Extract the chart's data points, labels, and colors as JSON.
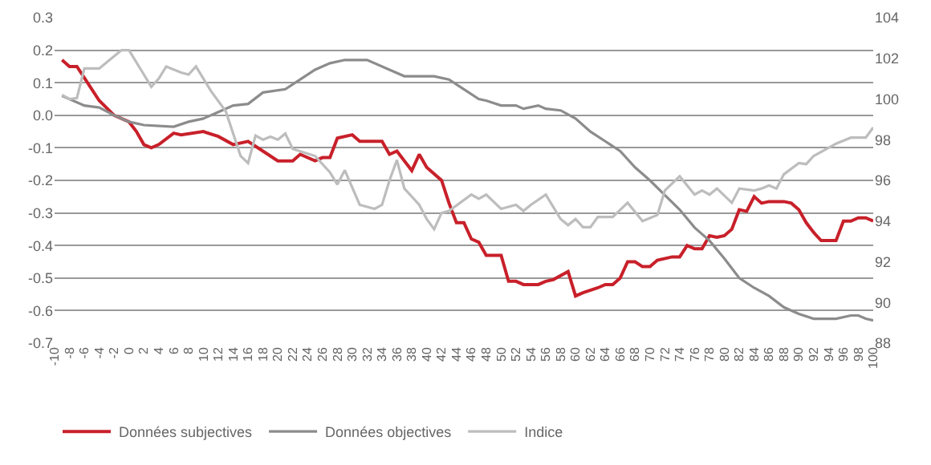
{
  "chart_data": {
    "type": "line",
    "xlim": [
      -10,
      100
    ],
    "xticks": [
      -10,
      -8,
      -6,
      -4,
      -2,
      0,
      2,
      4,
      6,
      8,
      10,
      12,
      14,
      16,
      18,
      20,
      22,
      24,
      26,
      28,
      30,
      32,
      34,
      36,
      38,
      40,
      42,
      44,
      46,
      48,
      50,
      52,
      54,
      56,
      58,
      60,
      62,
      64,
      66,
      68,
      70,
      72,
      74,
      76,
      78,
      80,
      82,
      84,
      86,
      88,
      90,
      92,
      94,
      96,
      98,
      100
    ],
    "ylim": [
      -0.7,
      0.3
    ],
    "yticks": [
      {
        "value": -0.7,
        "label": "-0.7"
      },
      {
        "value": -0.6,
        "label": "-0.6"
      },
      {
        "value": -0.5,
        "label": "-0.5"
      },
      {
        "value": -0.4,
        "label": "-0.4"
      },
      {
        "value": -0.3,
        "label": "-0.3"
      },
      {
        "value": -0.2,
        "label": "-0.2"
      },
      {
        "value": -0.1,
        "label": "-0.1"
      },
      {
        "value": 0,
        "label": "0.0"
      },
      {
        "value": 0.1,
        "label": "0.1"
      },
      {
        "value": 0.2,
        "label": "0.2"
      },
      {
        "value": 0.3,
        "label": "0.3"
      }
    ],
    "y2lim": [
      88,
      104
    ],
    "y2ticks": [
      88,
      90,
      92,
      94,
      96,
      98,
      100,
      102,
      104
    ],
    "grid": "y",
    "legend": "bottom",
    "series": [
      {
        "name": "Données subjectives",
        "color": "#c8202a",
        "x": [
          -9,
          -8,
          -7,
          -6,
          -4,
          -2,
          0,
          1,
          2,
          3,
          4,
          6,
          7,
          10,
          12,
          14,
          16,
          18,
          20,
          22,
          23,
          25,
          26,
          27,
          28,
          30,
          31,
          34,
          35,
          36,
          38,
          39,
          40,
          42,
          43,
          44,
          45,
          46,
          47,
          48,
          50,
          51,
          52,
          53,
          55,
          56,
          57,
          59,
          60,
          61,
          63,
          64,
          65,
          66,
          67,
          68,
          69,
          70,
          71,
          73,
          74,
          75,
          76,
          77,
          78,
          79,
          80,
          81,
          82,
          83,
          84,
          85,
          86,
          88,
          89,
          90,
          91,
          92,
          93,
          95,
          96,
          97,
          98,
          99,
          100
        ],
        "values": [
          0.17,
          0.15,
          0.15,
          0.115,
          0.045,
          0,
          -0.02,
          -0.05,
          -0.09,
          -0.1,
          -0.09,
          -0.055,
          -0.06,
          -0.05,
          -0.065,
          -0.09,
          -0.08,
          -0.11,
          -0.14,
          -0.14,
          -0.12,
          -0.14,
          -0.13,
          -0.13,
          -0.07,
          -0.06,
          -0.08,
          -0.08,
          -0.12,
          -0.11,
          -0.17,
          -0.12,
          -0.16,
          -0.2,
          -0.27,
          -0.33,
          -0.33,
          -0.38,
          -0.39,
          -0.43,
          -0.43,
          -0.51,
          -0.51,
          -0.52,
          -0.52,
          -0.51,
          -0.505,
          -0.48,
          -0.555,
          -0.545,
          -0.53,
          -0.52,
          -0.52,
          -0.5,
          -0.45,
          -0.45,
          -0.465,
          -0.465,
          -0.445,
          -0.435,
          -0.435,
          -0.4,
          -0.41,
          -0.41,
          -0.37,
          -0.375,
          -0.37,
          -0.35,
          -0.29,
          -0.295,
          -0.25,
          -0.27,
          -0.265,
          -0.265,
          -0.27,
          -0.29,
          -0.33,
          -0.36,
          -0.385,
          -0.385,
          -0.325,
          -0.325,
          -0.315,
          -0.315,
          -0.325
        ]
      },
      {
        "name": "Données objectives",
        "color": "#8c8c8c",
        "x": [
          -9,
          -6,
          -4,
          -2,
          0,
          2,
          6,
          8,
          10,
          12,
          14,
          16,
          18,
          21,
          23,
          25,
          27,
          29,
          32,
          35,
          37,
          41,
          43,
          45,
          47,
          48,
          50,
          52,
          53,
          55,
          56,
          58,
          60,
          62,
          64,
          66,
          68,
          70,
          72,
          74,
          76,
          78,
          80,
          82,
          84,
          86,
          88,
          90,
          92,
          95,
          97,
          98,
          99,
          100
        ],
        "values": [
          0.06,
          0.03,
          0.024,
          0,
          -0.02,
          -0.03,
          -0.035,
          -0.02,
          -0.01,
          0.01,
          0.03,
          0.035,
          0.07,
          0.08,
          0.11,
          0.14,
          0.16,
          0.17,
          0.17,
          0.14,
          0.12,
          0.12,
          0.11,
          0.08,
          0.05,
          0.045,
          0.03,
          0.03,
          0.02,
          0.03,
          0.02,
          0.015,
          -0.01,
          -0.05,
          -0.08,
          -0.11,
          -0.16,
          -0.2,
          -0.245,
          -0.29,
          -0.345,
          -0.385,
          -0.44,
          -0.5,
          -0.53,
          -0.555,
          -0.59,
          -0.61,
          -0.625,
          -0.625,
          -0.615,
          -0.615,
          -0.625,
          -0.63
        ]
      },
      {
        "name": "Indice",
        "color": "#bdbdbd",
        "axis": "y2",
        "x": [
          -9,
          -8,
          -7,
          -6,
          -4,
          -3,
          -1,
          0,
          2,
          3,
          4,
          5,
          7,
          8,
          9,
          11,
          13,
          15,
          16,
          17,
          18,
          19,
          20,
          21,
          22,
          25,
          27,
          28,
          29,
          31,
          33,
          34,
          35,
          36,
          37,
          39,
          40,
          41,
          42,
          43,
          46,
          47,
          48,
          50,
          51,
          52,
          53,
          54,
          56,
          58,
          59,
          60,
          61,
          62,
          63,
          65,
          67,
          69,
          71,
          72,
          74,
          76,
          77,
          78,
          79,
          81,
          82,
          84,
          85,
          86,
          87,
          88,
          90,
          91,
          92,
          94,
          95,
          97,
          99,
          100
        ],
        "values": [
          100.2,
          100,
          100.05,
          101.5,
          101.5,
          101.8,
          102.4,
          102.4,
          101.2,
          100.6,
          101,
          101.6,
          101.3,
          101.2,
          101.6,
          100.4,
          99.4,
          97.2,
          96.85,
          98.2,
          98,
          98.15,
          98,
          98.3,
          97.55,
          97.2,
          96.4,
          95.8,
          96.5,
          94.8,
          94.6,
          94.8,
          96,
          97,
          95.6,
          94.8,
          94.1,
          93.6,
          94.4,
          94.5,
          95.3,
          95.1,
          95.3,
          94.6,
          94.7,
          94.8,
          94.5,
          94.8,
          95.3,
          94.1,
          93.8,
          94.1,
          93.7,
          93.7,
          94.2,
          94.2,
          94.9,
          94,
          94.3,
          95.5,
          96.2,
          95.3,
          95.5,
          95.3,
          95.6,
          94.9,
          95.6,
          95.5,
          95.6,
          95.75,
          95.6,
          96.3,
          96.85,
          96.8,
          97.2,
          97.6,
          97.8,
          98.1,
          98.1,
          98.6
        ]
      }
    ]
  }
}
